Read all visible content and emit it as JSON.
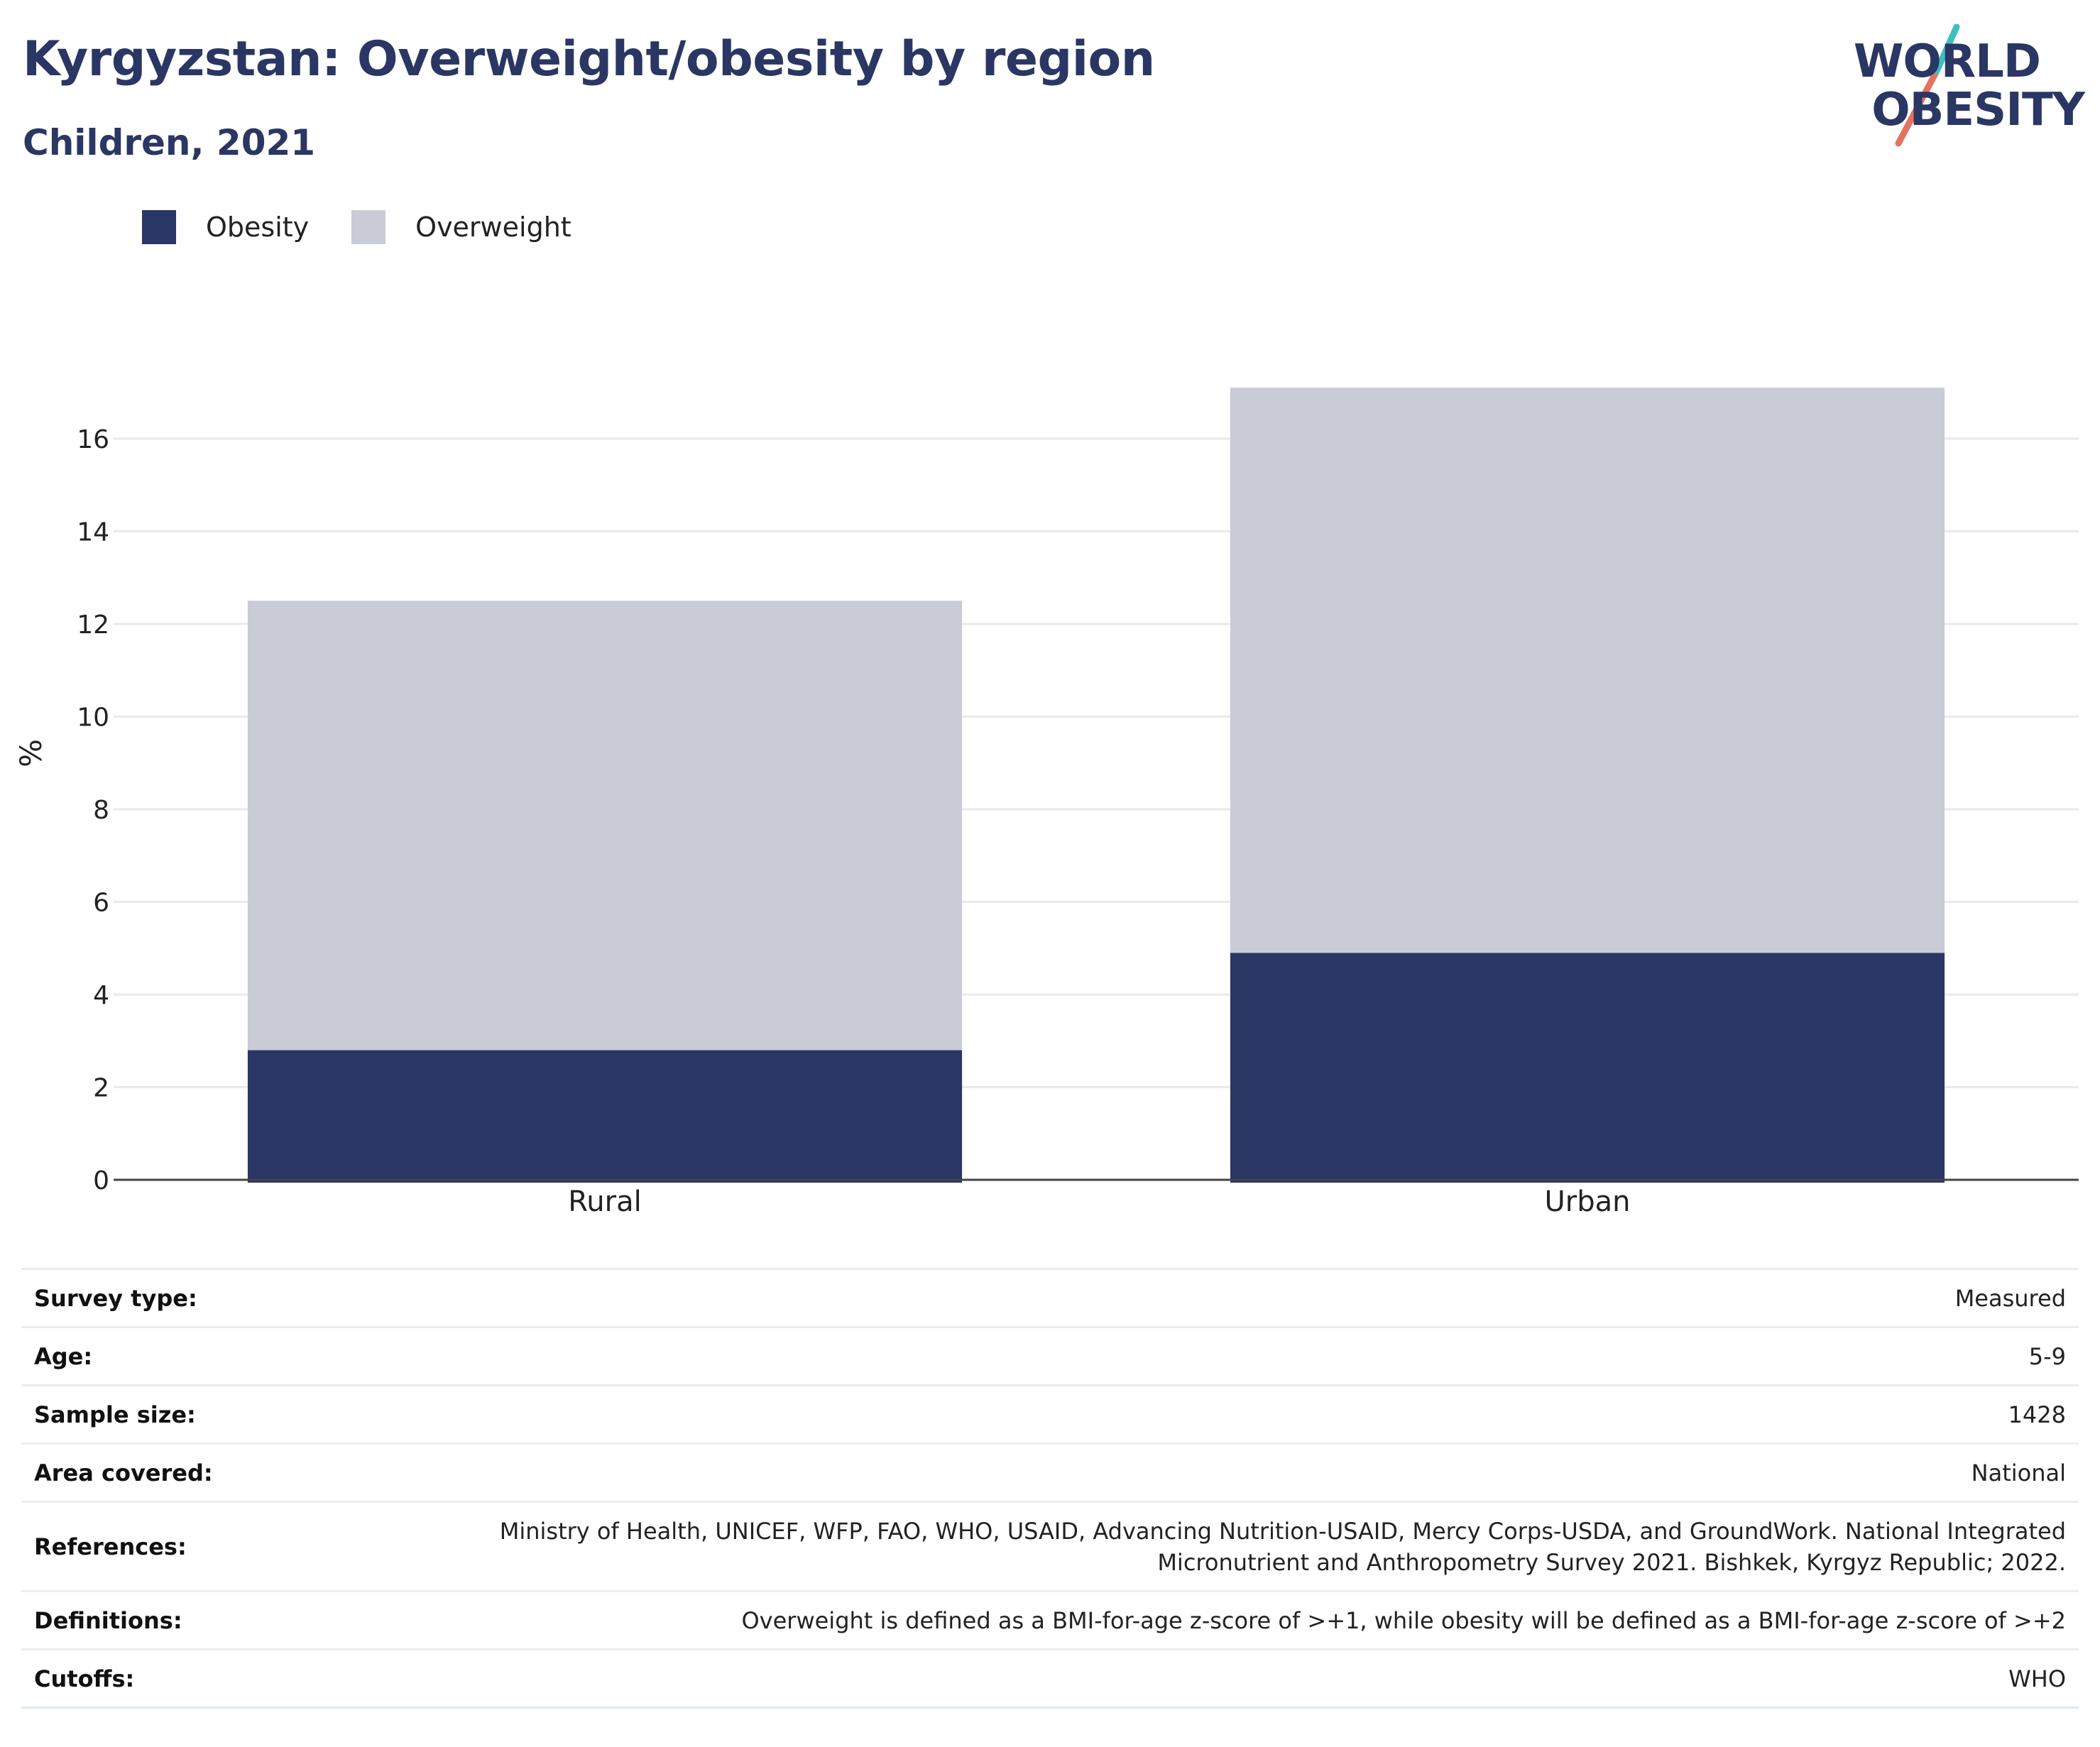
{
  "title": "Kyrgyzstan: Overweight/obesity by region",
  "subtitle": "Children, 2021",
  "logo": {
    "line1": "WORLD",
    "line2": "OBESITY"
  },
  "legend": [
    {
      "label": "Obesity",
      "color": "#2a3663"
    },
    {
      "label": "Overweight",
      "color": "#c9cbd7"
    }
  ],
  "chart_data": {
    "type": "bar",
    "stacked": true,
    "categories": [
      "Rural",
      "Urban"
    ],
    "series": [
      {
        "name": "Obesity",
        "color": "#2a3663",
        "values": [
          2.8,
          4.9
        ]
      },
      {
        "name": "Overweight",
        "color": "#c9cbd7",
        "values": [
          9.7,
          12.2
        ]
      }
    ],
    "ylabel": "%",
    "ylim": [
      0,
      17.5
    ],
    "yticks": [
      0,
      2,
      4,
      6,
      8,
      10,
      12,
      14,
      16
    ],
    "grid": true,
    "legend_position": "top-left"
  },
  "meta": [
    {
      "key": "Survey type:",
      "value": "Measured"
    },
    {
      "key": "Age:",
      "value": "5-9"
    },
    {
      "key": "Sample size:",
      "value": "1428"
    },
    {
      "key": "Area covered:",
      "value": "National"
    },
    {
      "key": "References:",
      "value": "Ministry of Health, UNICEF, WFP, FAO, WHO, USAID, Advancing Nutrition-USAID, Mercy Corps-USDA, and GroundWork. National Integrated Micronutrient and Anthropometry Survey 2021. Bishkek, Kyrgyz Republic; 2022."
    },
    {
      "key": "Definitions:",
      "value": "Overweight is defined as a BMI-for-age z-score of >+1, while obesity will be defined as a BMI-for-age z-score of >+2"
    },
    {
      "key": "Cutoffs:",
      "value": "WHO"
    }
  ]
}
